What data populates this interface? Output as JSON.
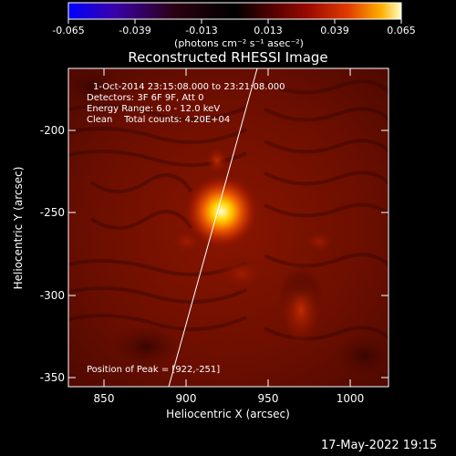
{
  "colorbar": {
    "ticks": [
      "-0.065",
      "-0.039",
      "-0.013",
      "0.013",
      "0.039",
      "0.065"
    ],
    "unit_label": "(photons cm⁻² s⁻¹ asec⁻²)",
    "colors": [
      "#0000ff",
      "#3a00a8",
      "#2a0010",
      "#000000",
      "#4a0000",
      "#9a0a00",
      "#e03c00",
      "#ffb000",
      "#ffffc8"
    ]
  },
  "plot": {
    "title": "Reconstructed RHESSI Image",
    "xlabel": "Heliocentric X (arcsec)",
    "ylabel": "Heliocentric Y (arcsec)",
    "xticks": [
      "850",
      "900",
      "950",
      "1000"
    ],
    "yticks": [
      "-200",
      "-250",
      "-300",
      "-350"
    ],
    "info_lines": [
      "1-Oct-2014 23:15:08.000 to 23:21:08.000",
      "Detectors: 3F 6F 9F, Att 0",
      "Energy Range: 6.0 - 12.0 keV",
      "Clean    Total counts: 4.20E+04"
    ],
    "peak_label": "Position of Peak = [922,-251]"
  },
  "footer": {
    "timestamp": "17-May-2022 19:15"
  }
}
